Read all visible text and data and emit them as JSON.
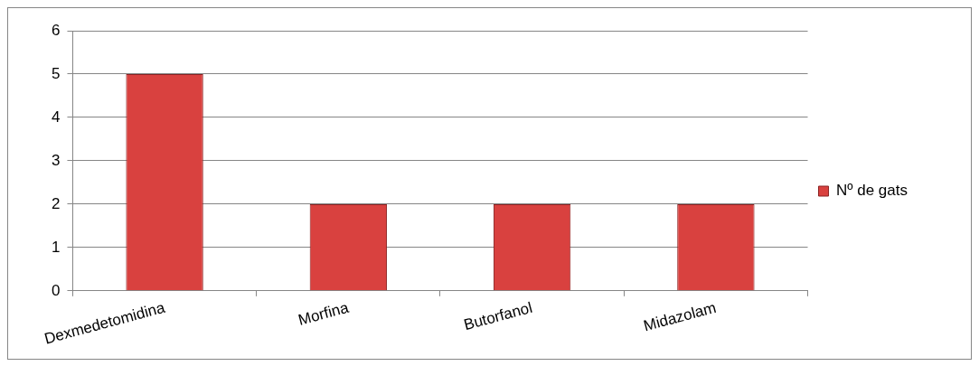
{
  "chart_data": {
    "type": "bar",
    "categories": [
      "Dexmedetomidina",
      "Morfina",
      "Butorfanol",
      "Midazolam"
    ],
    "series": [
      {
        "name": "Nº de gats",
        "color": "#d9413f",
        "values": [
          5,
          2,
          2,
          2
        ]
      }
    ],
    "ylim": [
      0,
      6
    ],
    "yticks": [
      0,
      1,
      2,
      3,
      4,
      5,
      6
    ],
    "grid": "y",
    "legend": "right"
  }
}
